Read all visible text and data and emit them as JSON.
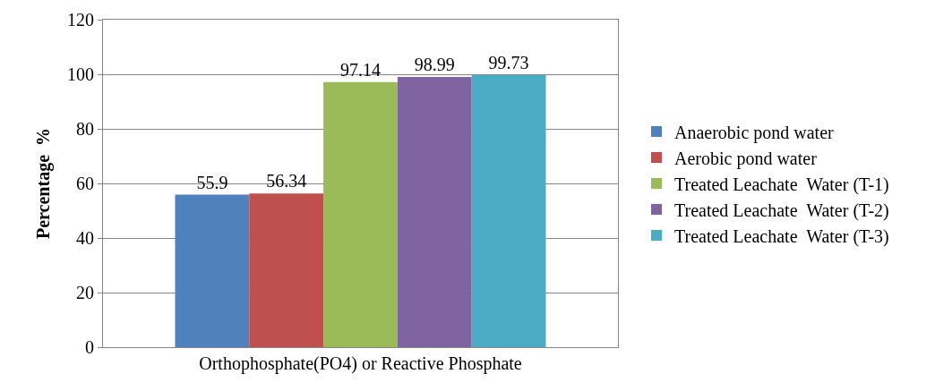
{
  "chart_data": {
    "type": "bar",
    "categories": [
      "Orthophosphate(PO4) or Reactive Phosphate"
    ],
    "ylabel": "Percentage  %",
    "series": [
      {
        "name": "Anaerobic pond water",
        "color": "#4f81bd",
        "values": [
          55.9
        ]
      },
      {
        "name": "Aerobic pond water",
        "color": "#c0504d",
        "values": [
          56.34
        ]
      },
      {
        "name": "Treated Leachate  Water (T-1)",
        "color": "#9bbb59",
        "values": [
          97.14
        ]
      },
      {
        "name": "Treated Leachate  Water (T-2)",
        "color": "#8064a2",
        "values": [
          98.99
        ]
      },
      {
        "name": "Treated Leachate  Water (T-3)",
        "color": "#4bacc6",
        "values": [
          99.73
        ]
      }
    ],
    "ylim": [
      0,
      120
    ],
    "yticks": [
      0,
      20,
      40,
      60,
      80,
      100,
      120
    ],
    "grid": "y",
    "legend": "right",
    "data_labels": true
  }
}
